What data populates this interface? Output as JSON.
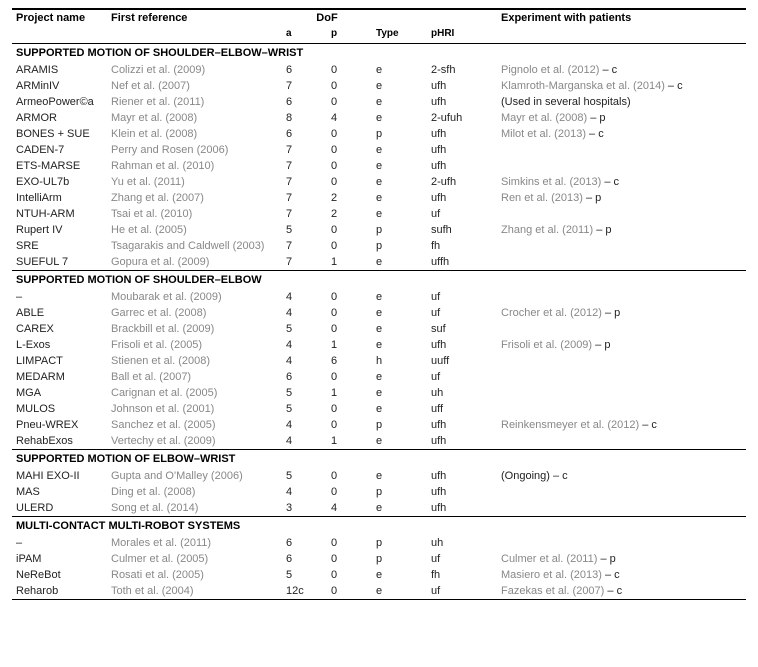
{
  "columns": {
    "project": "Project name",
    "firstref": "First reference",
    "dof": "DoF",
    "a": "a",
    "p": "p",
    "type": "Type",
    "phri": "pHRI",
    "exp": "Experiment with patients"
  },
  "sections": [
    {
      "title": "SUPPORTED MOTION OF SHOULDER–ELBOW–WRIST",
      "rows": [
        {
          "project": "ARAMIS",
          "ref": "Colizzi et al. (2009)",
          "a": "6",
          "p": "0",
          "type": "e",
          "phri": "2-sfh",
          "exp_ref": "Pignolo et al. (2012)",
          "exp_suffix": " – c"
        },
        {
          "project": "ARMinIV",
          "ref": "Nef et al. (2007)",
          "a": "7",
          "p": "0",
          "type": "e",
          "phri": "ufh",
          "exp_ref": "Klamroth-Marganska et al. (2014)",
          "exp_suffix": " – c"
        },
        {
          "project": "ArmeoPower©a",
          "ref": "Riener et al. (2011)",
          "a": "6",
          "p": "0",
          "type": "e",
          "phri": "ufh",
          "exp_ref": "",
          "exp_suffix": "(Used in several hospitals)"
        },
        {
          "project": "ARMOR",
          "ref": "Mayr et al. (2008)",
          "a": "8",
          "p": "4",
          "type": "e",
          "phri": "2-ufuh",
          "exp_ref": "Mayr et al. (2008)",
          "exp_suffix": " – p"
        },
        {
          "project": "BONES + SUE",
          "ref": "Klein et al. (2008)",
          "a": "6",
          "p": "0",
          "type": "p",
          "phri": "ufh",
          "exp_ref": "Milot et al. (2013)",
          "exp_suffix": " – c"
        },
        {
          "project": "CADEN-7",
          "ref": "Perry and Rosen (2006)",
          "a": "7",
          "p": "0",
          "type": "e",
          "phri": "ufh",
          "exp_ref": "",
          "exp_suffix": ""
        },
        {
          "project": "ETS-MARSE",
          "ref": "Rahman et al. (2010)",
          "a": "7",
          "p": "0",
          "type": "e",
          "phri": "ufh",
          "exp_ref": "",
          "exp_suffix": ""
        },
        {
          "project": "EXO-UL7b",
          "ref": "Yu et al. (2011)",
          "a": "7",
          "p": "0",
          "type": "e",
          "phri": "2-ufh",
          "exp_ref": "Simkins et al. (2013)",
          "exp_suffix": " – c"
        },
        {
          "project": "IntelliArm",
          "ref": "Zhang et al. (2007)",
          "a": "7",
          "p": "2",
          "type": "e",
          "phri": "ufh",
          "exp_ref": "Ren et al. (2013)",
          "exp_suffix": " – p"
        },
        {
          "project": "NTUH-ARM",
          "ref": "Tsai et al. (2010)",
          "a": "7",
          "p": "2",
          "type": "e",
          "phri": "uf",
          "exp_ref": "",
          "exp_suffix": ""
        },
        {
          "project": "Rupert IV",
          "ref": "He et al. (2005)",
          "a": "5",
          "p": "0",
          "type": "p",
          "phri": "sufh",
          "exp_ref": "Zhang et al. (2011)",
          "exp_suffix": " – p"
        },
        {
          "project": "SRE",
          "ref": "Tsagarakis and Caldwell (2003)",
          "a": "7",
          "p": "0",
          "type": "p",
          "phri": "fh",
          "exp_ref": "",
          "exp_suffix": ""
        },
        {
          "project": "SUEFUL 7",
          "ref": "Gopura et al. (2009)",
          "a": "7",
          "p": "1",
          "type": "e",
          "phri": "uffh",
          "exp_ref": "",
          "exp_suffix": ""
        }
      ]
    },
    {
      "title": "SUPPORTED MOTION OF SHOULDER–ELBOW",
      "rows": [
        {
          "project": "–",
          "ref": "Moubarak et al. (2009)",
          "a": "4",
          "p": "0",
          "type": "e",
          "phri": "uf",
          "exp_ref": "",
          "exp_suffix": ""
        },
        {
          "project": "ABLE",
          "ref": "Garrec et al. (2008)",
          "a": "4",
          "p": "0",
          "type": "e",
          "phri": "uf",
          "exp_ref": "Crocher et al. (2012)",
          "exp_suffix": " – p"
        },
        {
          "project": "CAREX",
          "ref": "Brackbill et al. (2009)",
          "a": "5",
          "p": "0",
          "type": "e",
          "phri": "suf",
          "exp_ref": "",
          "exp_suffix": ""
        },
        {
          "project": "L-Exos",
          "ref": "Frisoli et al. (2005)",
          "a": "4",
          "p": "1",
          "type": "e",
          "phri": "ufh",
          "exp_ref": "Frisoli et al. (2009)",
          "exp_suffix": " – p"
        },
        {
          "project": "LIMPACT",
          "ref": "Stienen et al. (2008)",
          "a": "4",
          "p": "6",
          "type": "h",
          "phri": "uuff",
          "exp_ref": "",
          "exp_suffix": ""
        },
        {
          "project": "MEDARM",
          "ref": "Ball et al. (2007)",
          "a": "6",
          "p": "0",
          "type": "e",
          "phri": "uf",
          "exp_ref": "",
          "exp_suffix": ""
        },
        {
          "project": "MGA",
          "ref": "Carignan et al. (2005)",
          "a": "5",
          "p": "1",
          "type": "e",
          "phri": "uh",
          "exp_ref": "",
          "exp_suffix": ""
        },
        {
          "project": "MULOS",
          "ref": "Johnson et al. (2001)",
          "a": "5",
          "p": "0",
          "type": "e",
          "phri": "uff",
          "exp_ref": "",
          "exp_suffix": ""
        },
        {
          "project": "Pneu-WREX",
          "ref": "Sanchez et al. (2005)",
          "a": "4",
          "p": "0",
          "type": "p",
          "phri": "ufh",
          "exp_ref": "Reinkensmeyer et al. (2012)",
          "exp_suffix": " – c"
        },
        {
          "project": "RehabExos",
          "ref": "Vertechy et al. (2009)",
          "a": "4",
          "p": "1",
          "type": "e",
          "phri": "ufh",
          "exp_ref": "",
          "exp_suffix": ""
        }
      ]
    },
    {
      "title": "SUPPORTED MOTION OF ELBOW–WRIST",
      "rows": [
        {
          "project": "MAHI EXO-II",
          "ref": "Gupta and O'Malley (2006)",
          "a": "5",
          "p": "0",
          "type": "e",
          "phri": "ufh",
          "exp_ref": "",
          "exp_suffix": "(Ongoing) – c"
        },
        {
          "project": "MAS",
          "ref": "Ding et al. (2008)",
          "a": "4",
          "p": "0",
          "type": "p",
          "phri": "ufh",
          "exp_ref": "",
          "exp_suffix": ""
        },
        {
          "project": "ULERD",
          "ref": "Song et al. (2014)",
          "a": "3",
          "p": "4",
          "type": "e",
          "phri": "ufh",
          "exp_ref": "",
          "exp_suffix": ""
        }
      ]
    },
    {
      "title": "MULTI-CONTACT MULTI-ROBOT SYSTEMS",
      "rows": [
        {
          "project": "–",
          "ref": "Morales et al. (2011)",
          "a": "6",
          "p": "0",
          "type": "p",
          "phri": "uh",
          "exp_ref": "",
          "exp_suffix": ""
        },
        {
          "project": "iPAM",
          "ref": "Culmer et al. (2005)",
          "a": "6",
          "p": "0",
          "type": "p",
          "phri": "uf",
          "exp_ref": "Culmer et al. (2011)",
          "exp_suffix": " – p"
        },
        {
          "project": "NeReBot",
          "ref": "Rosati et al. (2005)",
          "a": "5",
          "p": "0",
          "type": "e",
          "phri": "fh",
          "exp_ref": "Masiero et al. (2013)",
          "exp_suffix": " – c"
        },
        {
          "project": "Reharob",
          "ref": "Toth et al. (2004)",
          "a": "12c",
          "p": "0",
          "type": "e",
          "phri": "uf",
          "exp_ref": "Fazekas et al. (2007)",
          "exp_suffix": " – c"
        }
      ]
    }
  ]
}
